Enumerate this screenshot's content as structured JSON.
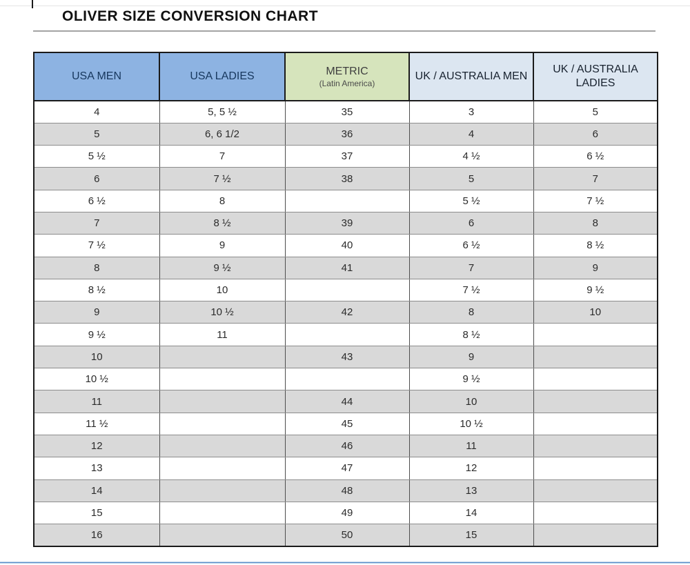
{
  "title": "OLIVER SIZE CONVERSION CHART",
  "table": {
    "headers": [
      {
        "label": "USA MEN",
        "sub": ""
      },
      {
        "label": "USA LADIES",
        "sub": ""
      },
      {
        "label": "METRIC",
        "sub": "(Latin America)"
      },
      {
        "label": "UK / AUSTRALIA MEN",
        "sub": ""
      },
      {
        "label": "UK / AUSTRALIA LADIES",
        "sub": ""
      }
    ]
  },
  "colors": {
    "header_blue": "#8db3e2",
    "header_green": "#d6e4bc",
    "header_light_blue": "#dce6f1",
    "row_stripe": "#d9d9d9",
    "bottom_bar_blue": "#5a8fc8",
    "header_text_navy": "#17375d"
  },
  "chart_data": {
    "type": "table",
    "title": "OLIVER SIZE CONVERSION CHART",
    "columns": [
      "USA MEN",
      "USA LADIES",
      "METRIC (Latin America)",
      "UK / AUSTRALIA MEN",
      "UK / AUSTRALIA LADIES"
    ],
    "rows": [
      [
        "4",
        "5, 5 ½",
        "35",
        "3",
        "5"
      ],
      [
        "5",
        "6, 6 1/2",
        "36",
        "4",
        "6"
      ],
      [
        "5 ½",
        "7",
        "37",
        "4 ½",
        "6 ½"
      ],
      [
        "6",
        "7 ½",
        "38",
        "5",
        "7"
      ],
      [
        "6 ½",
        "8",
        "",
        "5 ½",
        "7 ½"
      ],
      [
        "7",
        "8 ½",
        "39",
        "6",
        "8"
      ],
      [
        "7 ½",
        "9",
        "40",
        "6 ½",
        "8 ½"
      ],
      [
        "8",
        "9 ½",
        "41",
        "7",
        "9"
      ],
      [
        "8 ½",
        "10",
        "",
        "7 ½",
        "9 ½"
      ],
      [
        "9",
        "10 ½",
        "42",
        "8",
        "10"
      ],
      [
        "9 ½",
        "11",
        "",
        "8 ½",
        ""
      ],
      [
        "10",
        "",
        "43",
        "9",
        ""
      ],
      [
        "10 ½",
        "",
        "",
        "9 ½",
        ""
      ],
      [
        "11",
        "",
        "44",
        "10",
        ""
      ],
      [
        "11 ½",
        "",
        "45",
        "10 ½",
        ""
      ],
      [
        "12",
        "",
        "46",
        "11",
        ""
      ],
      [
        "13",
        "",
        "47",
        "12",
        ""
      ],
      [
        "14",
        "",
        "48",
        "13",
        ""
      ],
      [
        "15",
        "",
        "49",
        "14",
        ""
      ],
      [
        "16",
        "",
        "50",
        "15",
        ""
      ]
    ],
    "layout": {
      "stripe_pattern": "even rows shaded gray",
      "grid": true,
      "legend": false
    }
  }
}
